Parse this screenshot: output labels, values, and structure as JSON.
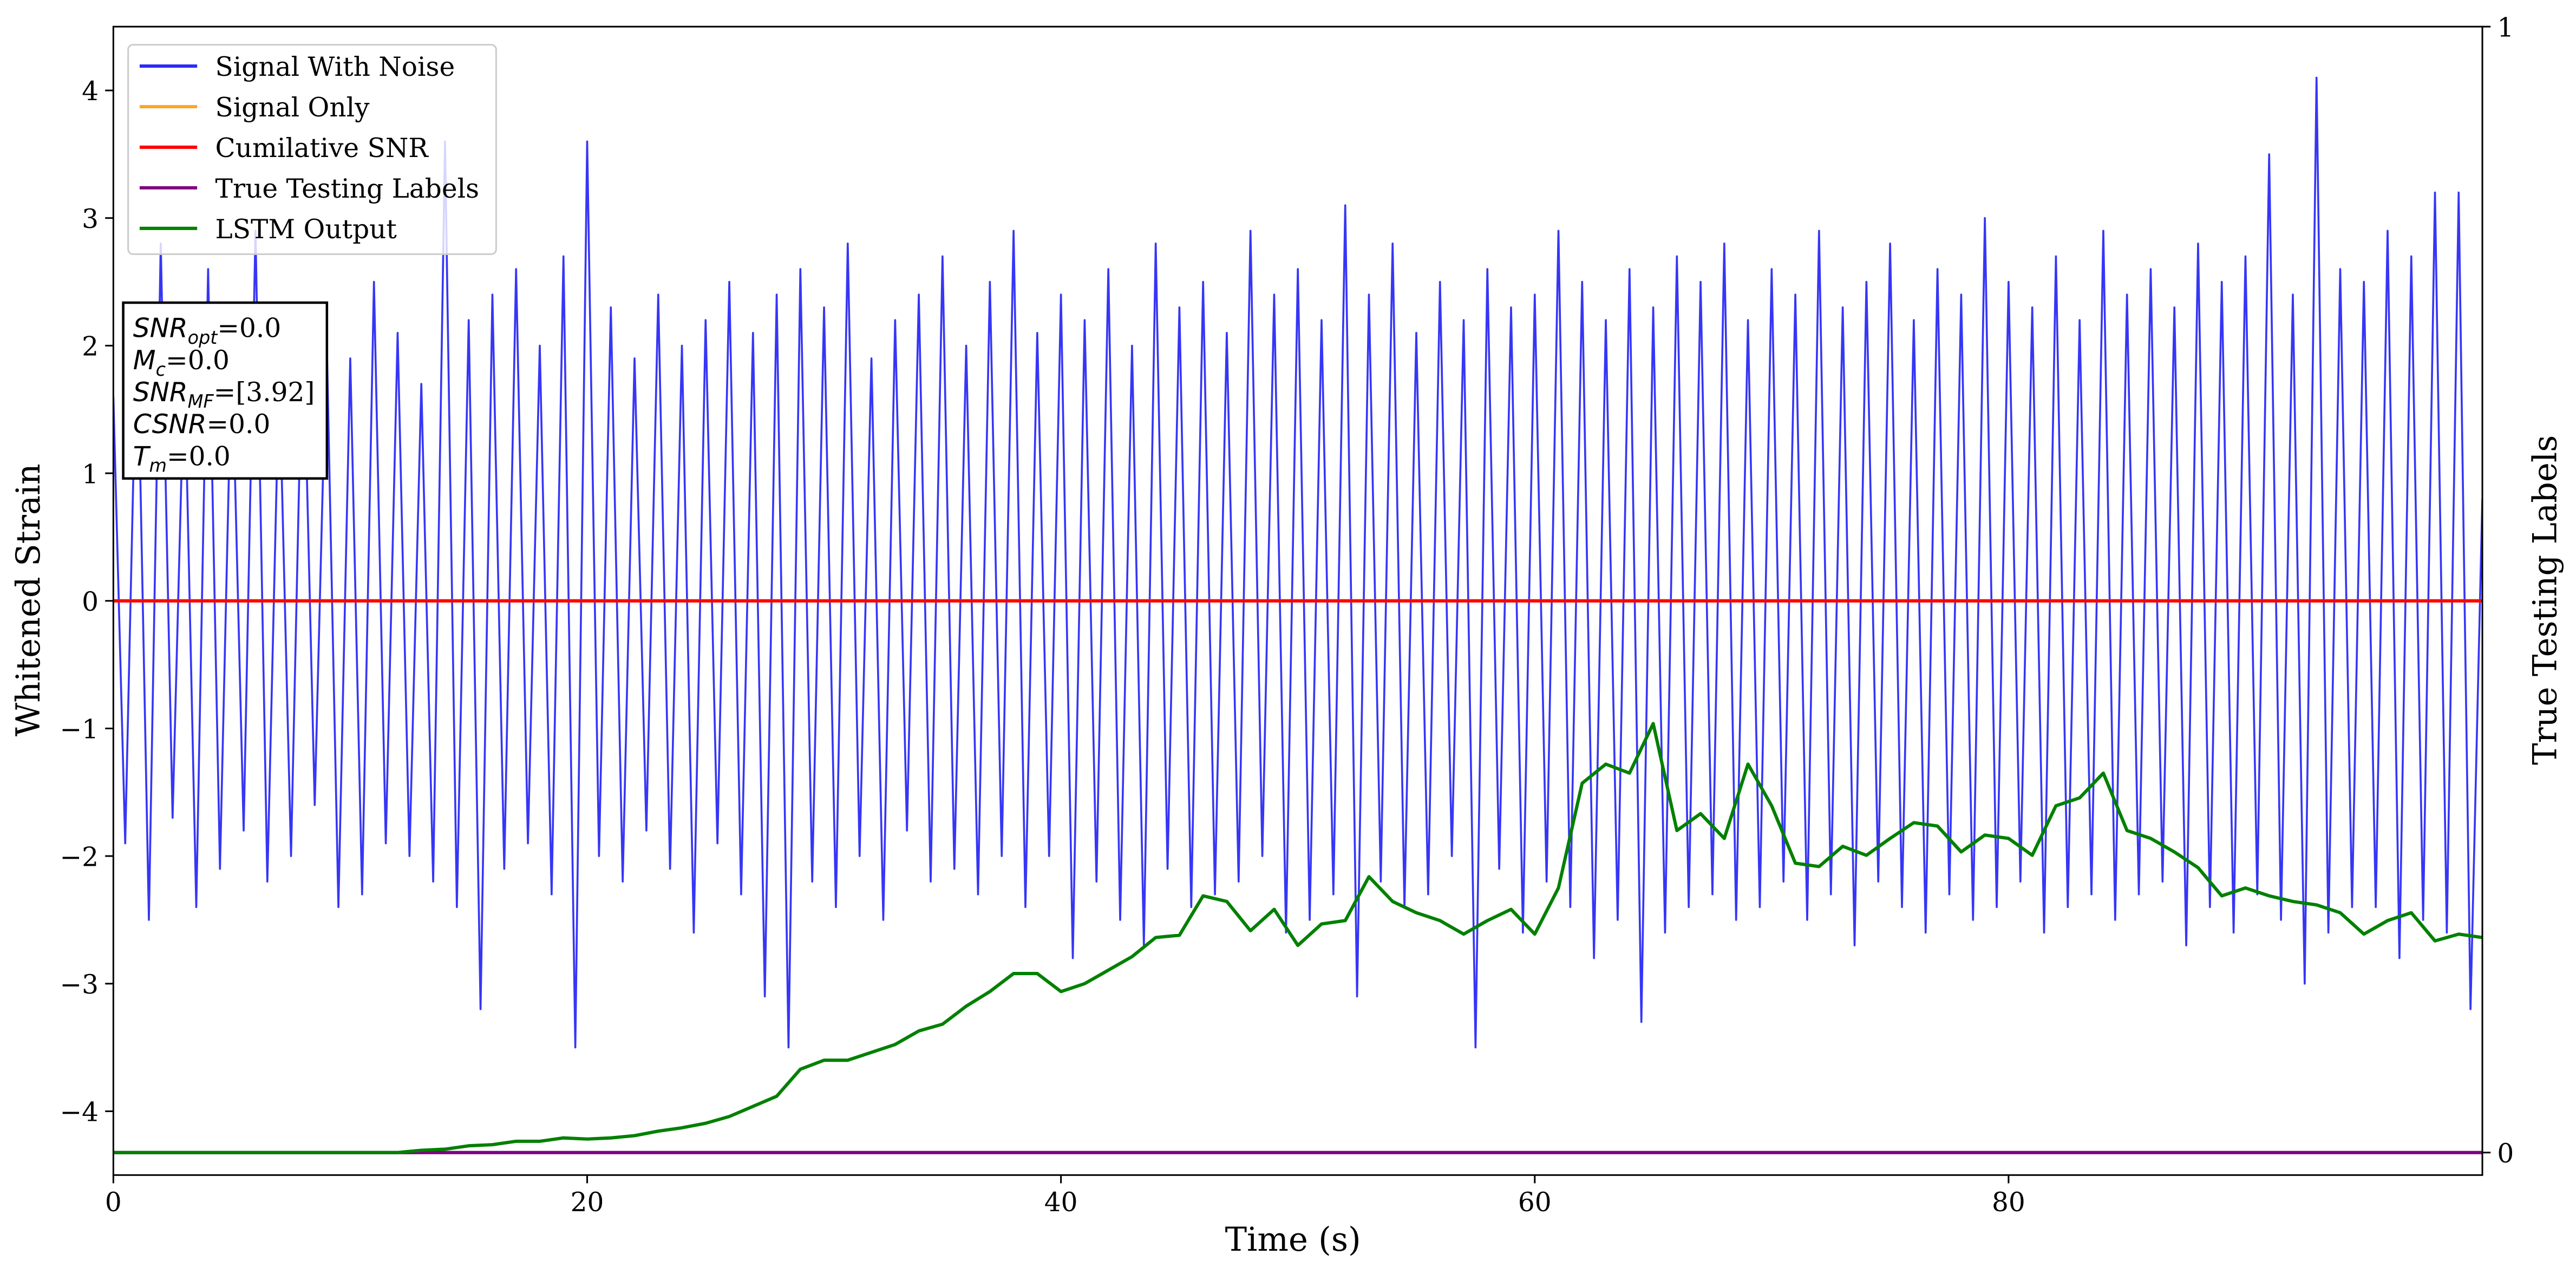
{
  "chart_data": {
    "type": "line",
    "xlabel": "Time (s)",
    "ylabel": "Whitened Strain",
    "y2label": "True Testing Labels",
    "xlim": [
      0,
      100
    ],
    "xticks": [
      0,
      20,
      40,
      60,
      80
    ],
    "ylim": [
      -4.5,
      4.5
    ],
    "yticks": [
      -4,
      -3,
      -2,
      -1,
      0,
      1,
      2,
      3,
      4
    ],
    "y2lim": [
      -0.02,
      1
    ],
    "y2ticks": [
      0,
      1
    ],
    "legend": "upper left",
    "series": [
      {
        "name": "Signal With Noise",
        "color": "#2b2bf5",
        "x": [
          0,
          0.5,
          1,
          1.5,
          2,
          2.5,
          3,
          3.5,
          4,
          4.5,
          5,
          5.5,
          6,
          6.5,
          7,
          7.5,
          8,
          8.5,
          9,
          9.5,
          10,
          10.5,
          11,
          11.5,
          12,
          12.5,
          13,
          13.5,
          14,
          14.5,
          15,
          15.5,
          16,
          16.5,
          17,
          17.5,
          18,
          18.5,
          19,
          19.5,
          20,
          20.5,
          21,
          21.5,
          22,
          22.5,
          23,
          23.5,
          24,
          24.5,
          25,
          25.5,
          26,
          26.5,
          27,
          27.5,
          28,
          28.5,
          29,
          29.5,
          30,
          30.5,
          31,
          31.5,
          32,
          32.5,
          33,
          33.5,
          34,
          34.5,
          35,
          35.5,
          36,
          36.5,
          37,
          37.5,
          38,
          38.5,
          39,
          39.5,
          40,
          40.5,
          41,
          41.5,
          42,
          42.5,
          43,
          43.5,
          44,
          44.5,
          45,
          45.5,
          46,
          46.5,
          47,
          47.5,
          48,
          48.5,
          49,
          49.5,
          50,
          50.5,
          51,
          51.5,
          52,
          52.5,
          53,
          53.5,
          54,
          54.5,
          55,
          55.5,
          56,
          56.5,
          57,
          57.5,
          58,
          58.5,
          59,
          59.5,
          60,
          60.5,
          61,
          61.5,
          62,
          62.5,
          63,
          63.5,
          64,
          64.5,
          65,
          65.5,
          66,
          66.5,
          67,
          67.5,
          68,
          68.5,
          69,
          69.5,
          70,
          70.5,
          71,
          71.5,
          72,
          72.5,
          73,
          73.5,
          74,
          74.5,
          75,
          75.5,
          76,
          76.5,
          77,
          77.5,
          78,
          78.5,
          79,
          79.5,
          80,
          80.5,
          81,
          81.5,
          82,
          82.5,
          83,
          83.5,
          84,
          84.5,
          85,
          85.5,
          86,
          86.5,
          87,
          87.5,
          88,
          88.5,
          89,
          89.5,
          90,
          90.5,
          91,
          91.5,
          92,
          92.5,
          93,
          93.5,
          94,
          94.5,
          95,
          95.5,
          96,
          96.5,
          97,
          97.5,
          98,
          98.5,
          99,
          99.5,
          100
        ],
        "values": [
          1.6,
          -1.9,
          2.3,
          -2.5,
          2.8,
          -1.7,
          1.9,
          -2.4,
          2.6,
          -2.1,
          2.0,
          -1.8,
          2.9,
          -2.2,
          1.8,
          -2.0,
          2.3,
          -1.6,
          2.1,
          -2.4,
          1.9,
          -2.3,
          2.5,
          -1.9,
          2.1,
          -2.0,
          1.7,
          -2.2,
          3.6,
          -2.4,
          2.2,
          -3.2,
          2.4,
          -2.1,
          2.6,
          -1.9,
          2.0,
          -2.3,
          2.7,
          -3.5,
          3.6,
          -2.0,
          2.3,
          -2.2,
          1.9,
          -1.8,
          2.4,
          -2.1,
          2.0,
          -2.6,
          2.2,
          -1.9,
          2.5,
          -2.3,
          2.1,
          -3.1,
          2.4,
          -3.5,
          2.6,
          -2.2,
          2.3,
          -2.4,
          2.8,
          -2.0,
          1.9,
          -2.5,
          2.2,
          -1.8,
          2.4,
          -2.2,
          2.7,
          -2.1,
          2.0,
          -2.3,
          2.5,
          -2.0,
          2.9,
          -2.4,
          2.1,
          -2.0,
          2.4,
          -2.8,
          2.2,
          -2.2,
          2.6,
          -2.5,
          2.0,
          -2.7,
          2.8,
          -2.1,
          2.3,
          -2.4,
          2.5,
          -2.3,
          2.1,
          -2.2,
          2.9,
          -2.0,
          2.4,
          -2.6,
          2.6,
          -2.5,
          2.2,
          -2.3,
          3.1,
          -3.1,
          2.4,
          -2.2,
          2.8,
          -2.4,
          2.1,
          -2.3,
          2.5,
          -2.0,
          2.2,
          -3.5,
          2.6,
          -2.1,
          2.3,
          -2.6,
          2.4,
          -2.2,
          2.9,
          -2.4,
          2.5,
          -2.8,
          2.2,
          -2.5,
          2.6,
          -3.3,
          2.3,
          -2.6,
          2.7,
          -2.4,
          2.5,
          -2.3,
          2.8,
          -2.5,
          2.2,
          -2.4,
          2.6,
          -2.2,
          2.4,
          -2.5,
          2.9,
          -2.3,
          2.3,
          -2.7,
          2.5,
          -2.2,
          2.8,
          -2.4,
          2.2,
          -2.6,
          2.6,
          -2.3,
          2.4,
          -2.5,
          3.0,
          -2.4,
          2.5,
          -2.2,
          2.3,
          -2.6,
          2.7,
          -2.4,
          2.2,
          -2.3,
          2.9,
          -2.5,
          2.4,
          -2.3,
          2.6,
          -2.2,
          2.3,
          -2.7,
          2.8,
          -2.4,
          2.5,
          -2.6,
          2.7,
          -2.3,
          3.5,
          -2.5,
          2.4,
          -3.0,
          4.1,
          -2.6,
          2.6,
          -2.4,
          2.5,
          -2.4,
          2.9,
          -2.8,
          2.7,
          -2.5,
          3.2,
          -2.6,
          3.2,
          -3.2,
          0.8
        ]
      },
      {
        "name": "Signal Only",
        "color": "#ffa528",
        "x": [
          0,
          100
        ],
        "values": [
          0,
          0
        ]
      },
      {
        "name": "Cumilative SNR",
        "color": "#ff0000",
        "x": [
          0,
          100
        ],
        "values": [
          0,
          0
        ]
      },
      {
        "name": "True Testing Labels",
        "color": "#800080",
        "axis": "y2",
        "x": [
          0,
          100
        ],
        "values": [
          0,
          0
        ]
      },
      {
        "name": "LSTM Output",
        "color": "#008000",
        "axis": "y2",
        "x": [
          0,
          1,
          2,
          3,
          4,
          5,
          6,
          7,
          8,
          9,
          10,
          11,
          12,
          13,
          14,
          15,
          16,
          17,
          18,
          19,
          20,
          21,
          22,
          23,
          24,
          25,
          26,
          27,
          28,
          29,
          30,
          31,
          32,
          33,
          34,
          35,
          36,
          37,
          38,
          39,
          40,
          41,
          42,
          43,
          44,
          45,
          46,
          47,
          48,
          49,
          50,
          51,
          52,
          53,
          54,
          55,
          56,
          57,
          58,
          59,
          60,
          61,
          62,
          63,
          64,
          65,
          66,
          67,
          68,
          69,
          70,
          71,
          72,
          73,
          74,
          75,
          76,
          77,
          78,
          79,
          80,
          81,
          82,
          83,
          84,
          85,
          86,
          87,
          88,
          89,
          90,
          91,
          92,
          93,
          94,
          95,
          96,
          97,
          98,
          99,
          100
        ],
        "values": [
          0,
          0,
          0,
          0,
          0,
          0,
          0,
          0,
          0,
          0,
          0,
          0,
          0,
          0.002,
          0.003,
          0.006,
          0.007,
          0.01,
          0.01,
          0.013,
          0.012,
          0.013,
          0.015,
          0.019,
          0.022,
          0.026,
          0.032,
          0.041,
          0.05,
          0.074,
          0.082,
          0.082,
          0.089,
          0.096,
          0.108,
          0.114,
          0.13,
          0.143,
          0.159,
          0.159,
          0.143,
          0.15,
          0.162,
          0.174,
          0.191,
          0.193,
          0.228,
          0.223,
          0.197,
          0.216,
          0.184,
          0.203,
          0.206,
          0.245,
          0.223,
          0.213,
          0.206,
          0.194,
          0.206,
          0.216,
          0.194,
          0.235,
          0.328,
          0.345,
          0.337,
          0.381,
          0.286,
          0.301,
          0.279,
          0.345,
          0.308,
          0.257,
          0.254,
          0.272,
          0.264,
          0.279,
          0.293,
          0.29,
          0.267,
          0.282,
          0.279,
          0.264,
          0.308,
          0.315,
          0.337,
          0.286,
          0.279,
          0.267,
          0.253,
          0.228,
          0.235,
          0.228,
          0.223,
          0.22,
          0.213,
          0.194,
          0.206,
          0.213,
          0.188,
          0.194,
          0.191
        ]
      }
    ],
    "annotations": [
      {
        "parts": [
          {
            "text": "SNR",
            "italic": true
          },
          {
            "text": "opt",
            "italic": true,
            "sub": true
          },
          {
            "text": "=0.0"
          }
        ]
      },
      {
        "parts": [
          {
            "text": "M",
            "italic": true
          },
          {
            "text": "c",
            "italic": true,
            "sub": true
          },
          {
            "text": "=0.0"
          }
        ]
      },
      {
        "parts": [
          {
            "text": "SNR",
            "italic": true
          },
          {
            "text": "MF",
            "italic": true,
            "sub": true
          },
          {
            "text": "=[3.92]"
          }
        ]
      },
      {
        "parts": [
          {
            "text": "CSNR",
            "italic": true
          },
          {
            "text": "=0.0"
          }
        ]
      },
      {
        "parts": [
          {
            "text": "T",
            "italic": true
          },
          {
            "text": "m",
            "italic": true,
            "sub": true
          },
          {
            "text": "=0.0"
          }
        ]
      }
    ]
  }
}
